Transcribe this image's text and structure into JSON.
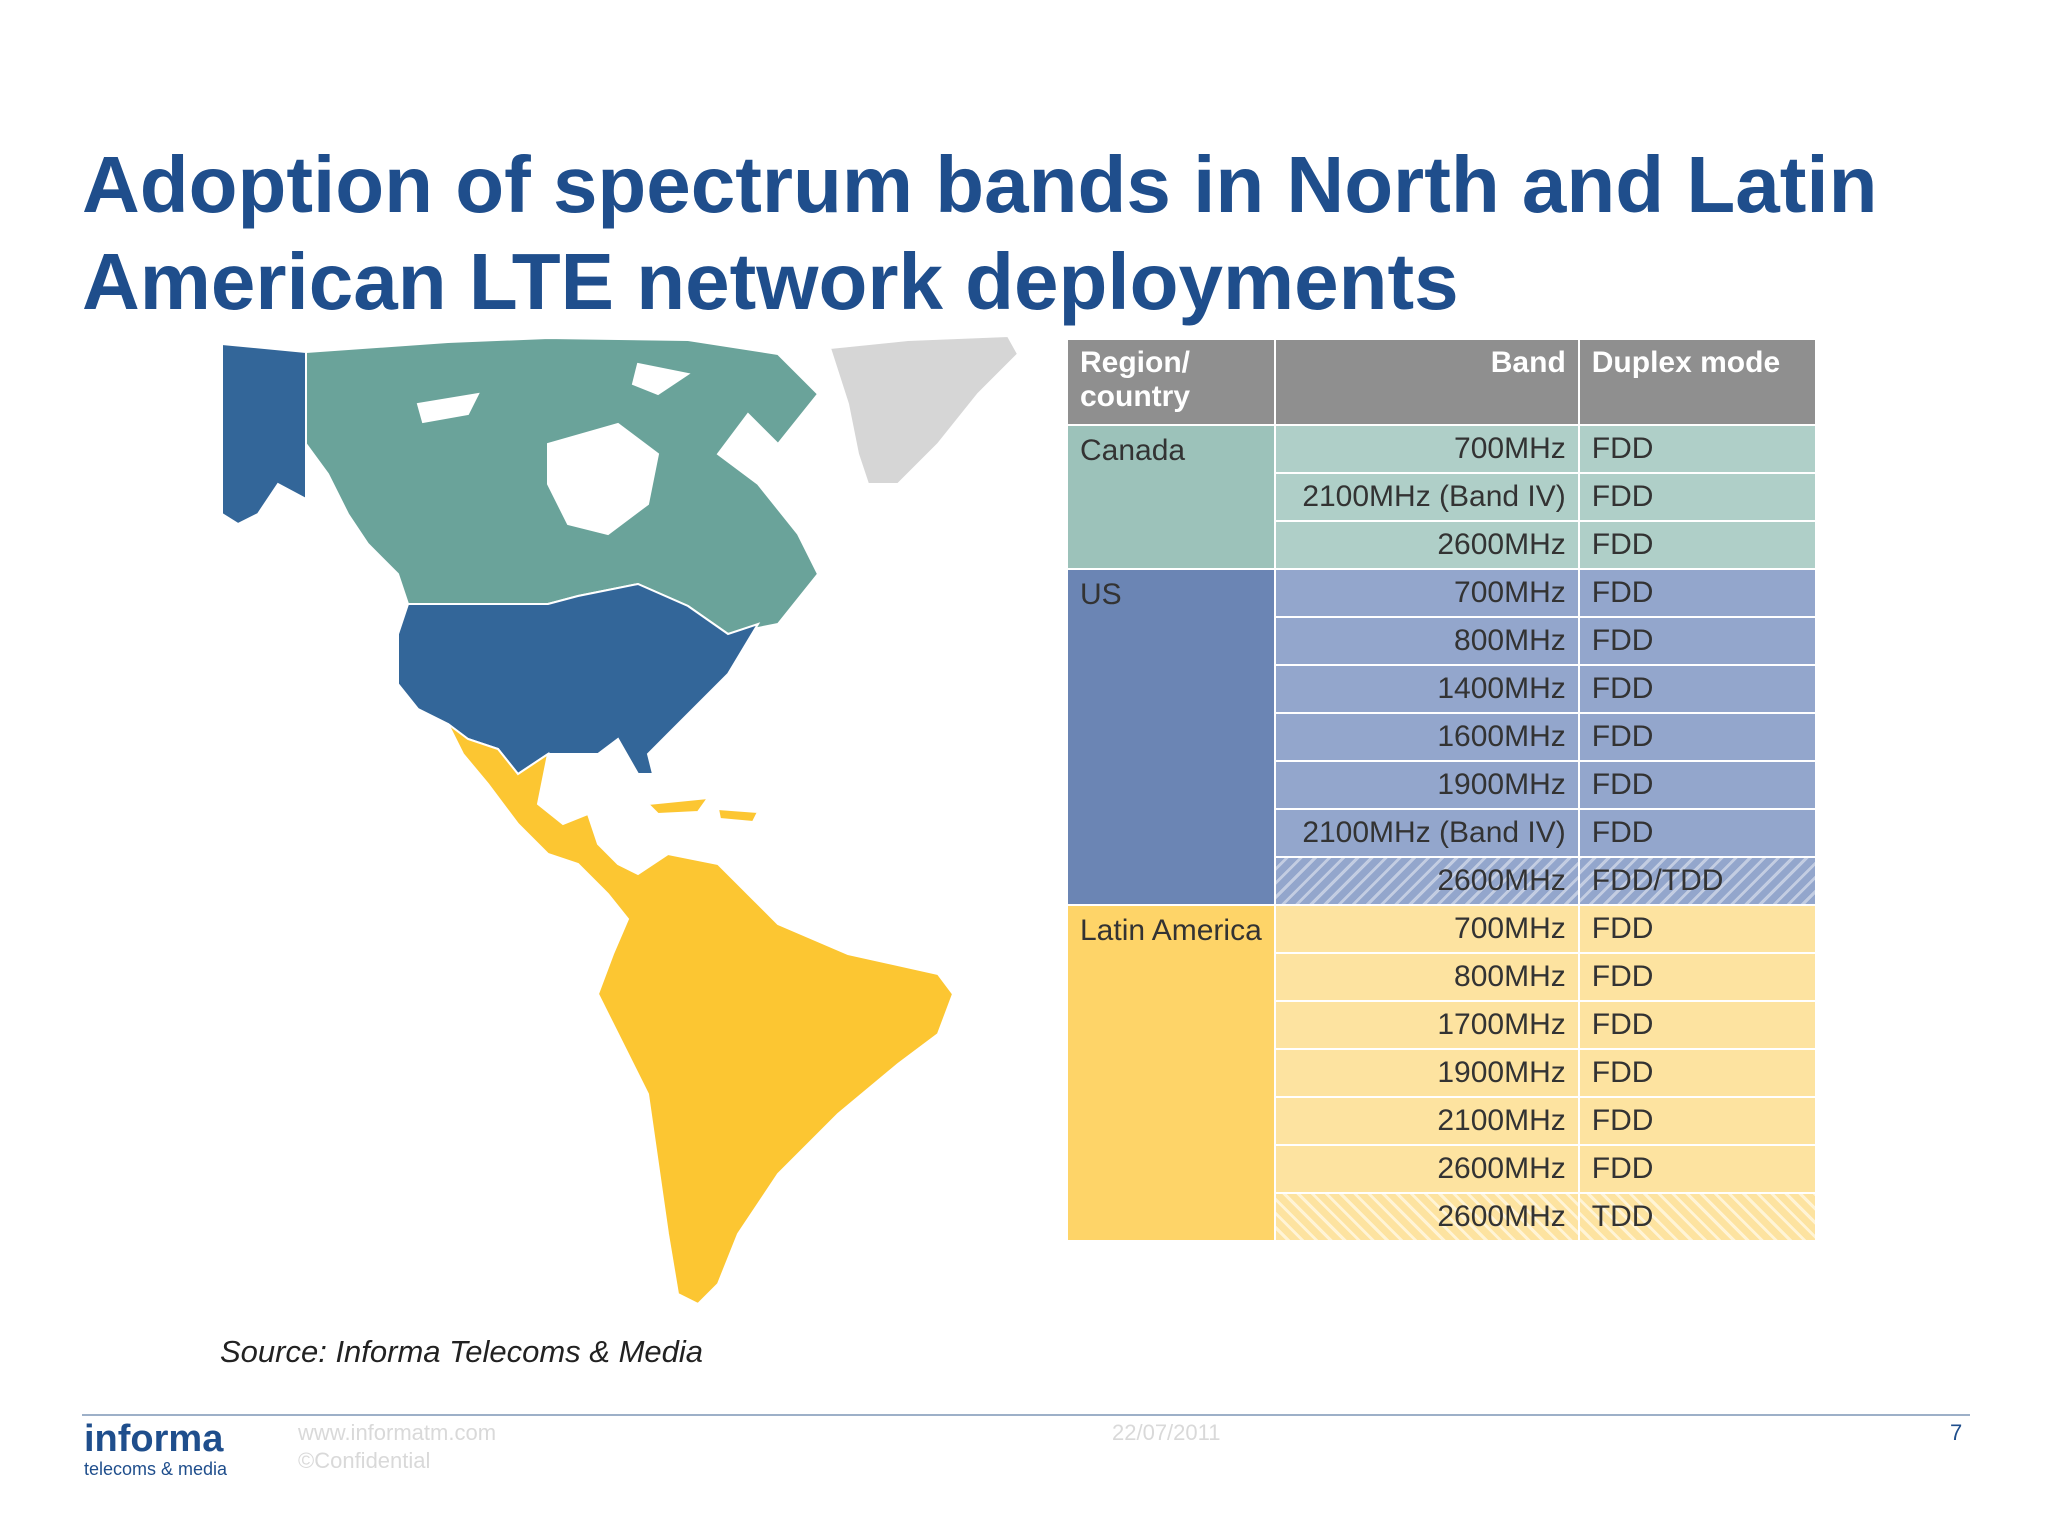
{
  "slide": {
    "title_line1": "Adoption of spectrum bands in North and Latin",
    "title_line2": "American LTE network deployments"
  },
  "map": {
    "colors": {
      "canada": "#6aa39a",
      "us": "#336699",
      "latin_america": "#fcc632",
      "greenland": "#d6d6d6",
      "water": "#ffffff"
    }
  },
  "table": {
    "headers": {
      "region_line1": "Region/",
      "region_line2": "country",
      "band": "Band",
      "mode": "Duplex mode"
    },
    "groups": [
      {
        "region": "Canada",
        "rows": [
          {
            "band": "700MHz",
            "mode": "FDD"
          },
          {
            "band": "2100MHz (Band IV)",
            "mode": "FDD"
          },
          {
            "band": "2600MHz",
            "mode": "FDD"
          }
        ]
      },
      {
        "region": "US",
        "rows": [
          {
            "band": "700MHz",
            "mode": "FDD"
          },
          {
            "band": "800MHz",
            "mode": "FDD"
          },
          {
            "band": "1400MHz",
            "mode": "FDD"
          },
          {
            "band": "1600MHz",
            "mode": "FDD"
          },
          {
            "band": "1900MHz",
            "mode": "FDD"
          },
          {
            "band": "2100MHz (Band IV)",
            "mode": "FDD"
          },
          {
            "band": "2600MHz",
            "mode": "FDD/TDD"
          }
        ]
      },
      {
        "region": "Latin America",
        "rows": [
          {
            "band": "700MHz",
            "mode": "FDD"
          },
          {
            "band": "800MHz",
            "mode": "FDD"
          },
          {
            "band": "1700MHz",
            "mode": "FDD"
          },
          {
            "band": "1900MHz",
            "mode": "FDD"
          },
          {
            "band": "2100MHz",
            "mode": "FDD"
          },
          {
            "band": "2600MHz",
            "mode": "FDD"
          },
          {
            "band": "2600MHz",
            "mode": "TDD"
          }
        ]
      }
    ]
  },
  "source": "Source: Informa Telecoms & Media",
  "footer": {
    "logo_main": "informa",
    "logo_sub": "telecoms & media",
    "url": "www.informatm.com",
    "confidential": "©Confidential",
    "date": "22/07/2011",
    "page": "7"
  }
}
